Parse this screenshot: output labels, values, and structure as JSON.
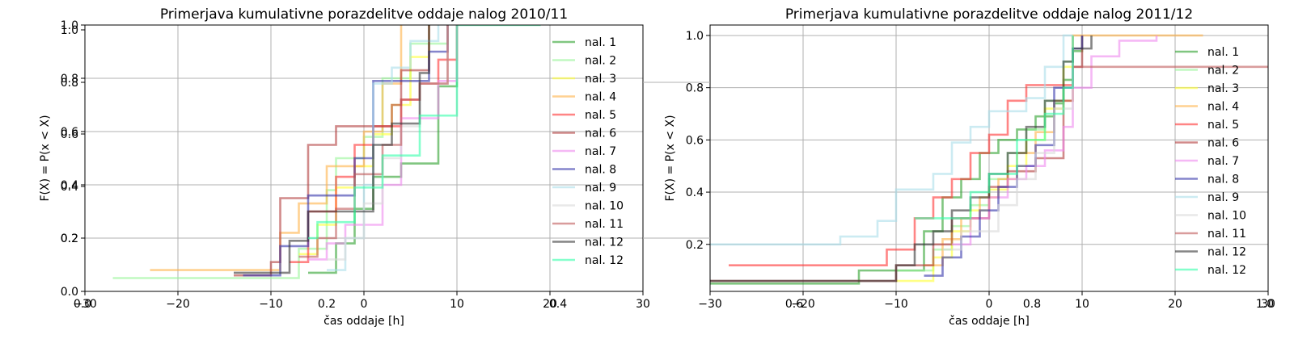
{
  "chart_data": [
    {
      "type": "line",
      "title": "Primerjava kumulativne porazdelitve oddaje nalog 2010/11",
      "xlabel": "čas oddaje [h]",
      "ylabel": "F(X) = P(x < X)",
      "xlim": [
        -30,
        30
      ],
      "ylim": [
        0,
        1
      ],
      "x_ticks": [
        -30,
        -20,
        -10,
        0,
        10,
        20,
        30
      ],
      "x_tick_labels": [
        "−30",
        "−20",
        "−10",
        "0",
        "10",
        "20",
        "30"
      ],
      "y_ticks": [
        0.0,
        0.2,
        0.4,
        0.6,
        0.8,
        1.0
      ],
      "y_tick_labels": [
        "0.0",
        "0.2",
        "0.4",
        "0.6",
        "0.8",
        "1.0"
      ],
      "overlay_y_tick_labels": [
        "0.2",
        "0.4",
        "0.6",
        "0.8",
        "1.0"
      ],
      "overlay_x_tick_labels": [
        "0.0",
        "0.2",
        "0.4"
      ],
      "grid": true,
      "legend_position": "upper right",
      "series": [
        {
          "name": "nal. 1",
          "color": "#2ca02c",
          "x": [
            -6,
            -3,
            -1,
            1,
            4,
            6,
            8,
            10
          ],
          "y": [
            0.07,
            0.18,
            0.31,
            0.43,
            0.48,
            0.48,
            0.77,
            1.0
          ]
        },
        {
          "name": "nal. 2",
          "color": "#98f598",
          "x": [
            -27,
            -7,
            -4,
            -3,
            -2,
            0,
            2,
            5,
            9
          ],
          "y": [
            0.05,
            0.16,
            0.38,
            0.5,
            0.5,
            0.58,
            0.8,
            0.93,
            1.0
          ]
        },
        {
          "name": "nal. 3",
          "color": "#ffff33",
          "x": [
            -7,
            -5,
            -3,
            -1,
            1,
            3,
            5,
            7
          ],
          "y": [
            0.14,
            0.25,
            0.39,
            0.47,
            0.59,
            0.7,
            0.88,
            1.0
          ]
        },
        {
          "name": "nal. 4",
          "color": "#ffb347",
          "x": [
            -23,
            -10,
            -9,
            -7,
            -4,
            -2,
            0,
            2,
            4
          ],
          "y": [
            0.08,
            0.08,
            0.22,
            0.33,
            0.47,
            0.47,
            0.6,
            0.78,
            1.0
          ]
        },
        {
          "name": "nal. 5",
          "color": "#ff3333",
          "x": [
            -8,
            -6,
            -3,
            -1,
            1,
            4,
            6,
            8,
            10
          ],
          "y": [
            0.11,
            0.3,
            0.43,
            0.55,
            0.62,
            0.72,
            0.78,
            0.87,
            1.0
          ]
        },
        {
          "name": "nal. 6",
          "color": "#b23c3c",
          "x": [
            -14,
            -10,
            -9,
            -7,
            -6,
            -4,
            -3,
            3,
            4,
            7
          ],
          "y": [
            0.06,
            0.11,
            0.35,
            0.35,
            0.55,
            0.55,
            0.62,
            0.7,
            0.83,
            1.0
          ]
        },
        {
          "name": "nal. 7",
          "color": "#ee88ee",
          "x": [
            -6,
            -4,
            -2,
            0,
            2,
            4,
            8,
            10
          ],
          "y": [
            0.12,
            0.18,
            0.25,
            0.25,
            0.4,
            0.65,
            0.79,
            1.0
          ]
        },
        {
          "name": "nal. 8",
          "color": "#3333aa",
          "x": [
            -13,
            -9,
            -7,
            -6,
            -3,
            -1,
            1,
            4,
            7,
            9
          ],
          "y": [
            0.06,
            0.17,
            0.17,
            0.36,
            0.36,
            0.5,
            0.79,
            0.79,
            0.9,
            1.0
          ]
        },
        {
          "name": "nal. 9",
          "color": "#aadde9",
          "x": [
            -4,
            -2,
            0,
            1,
            3,
            5,
            8
          ],
          "y": [
            0.08,
            0.2,
            0.4,
            0.78,
            0.84,
            0.94,
            1.0
          ]
        },
        {
          "name": "nal. 10",
          "color": "#d9d9d9",
          "x": [
            -4,
            -2,
            0,
            2,
            4,
            6,
            9
          ],
          "y": [
            0.12,
            0.2,
            0.33,
            0.5,
            0.62,
            0.78,
            1.0
          ]
        },
        {
          "name": "nal. 11",
          "color": "#bf5a5a",
          "x": [
            -7,
            -6,
            -5,
            -3,
            -1,
            2,
            4,
            6,
            9
          ],
          "y": [
            0.13,
            0.13,
            0.2,
            0.31,
            0.44,
            0.55,
            0.72,
            0.78,
            1.0
          ]
        },
        {
          "name": "nal. 12",
          "color": "#333333",
          "x": [
            -14,
            -10,
            -8,
            -6,
            -3,
            1,
            3,
            6,
            7
          ],
          "y": [
            0.07,
            0.07,
            0.19,
            0.3,
            0.3,
            0.55,
            0.63,
            0.82,
            1.0
          ]
        },
        {
          "name": "nal. 12",
          "color": "#33ffaa",
          "x": [
            -6,
            -5,
            -3,
            -1,
            2,
            6,
            9,
            10,
            19
          ],
          "y": [
            0.2,
            0.26,
            0.26,
            0.39,
            0.51,
            0.66,
            0.66,
            1.0,
            1.0
          ]
        }
      ]
    },
    {
      "type": "line",
      "title": "Primerjava kumulativne porazdelitve oddaje nalog 2011/12",
      "xlabel": "čas oddaje [h]",
      "ylabel": "F(X) = P(x < X)",
      "xlim": [
        -30,
        30
      ],
      "ylim": [
        0.02,
        1.04
      ],
      "x_ticks": [
        -30,
        -20,
        -10,
        0,
        10,
        20,
        30
      ],
      "x_tick_labels": [
        "−30",
        "−20",
        "−10",
        "0",
        "10",
        "20",
        "30"
      ],
      "y_ticks": [
        0.2,
        0.4,
        0.6,
        0.8,
        1.0
      ],
      "y_tick_labels": [
        "0.2",
        "0.4",
        "0.6",
        "0.8",
        "1.0"
      ],
      "overlay_x_tick_labels": [
        "0.6",
        "0.8",
        "1.0"
      ],
      "grid": true,
      "legend_position": "right",
      "series": [
        {
          "name": "nal. 1",
          "color": "#2ca02c",
          "x": [
            -30,
            -14,
            -7,
            -5,
            -3,
            -1,
            1,
            3,
            5,
            7,
            8,
            9,
            10
          ],
          "y": [
            0.05,
            0.1,
            0.25,
            0.38,
            0.45,
            0.55,
            0.6,
            0.64,
            0.69,
            0.74,
            0.83,
            0.94,
            1.0
          ]
        },
        {
          "name": "nal. 2",
          "color": "#98f598",
          "x": [
            -10,
            -6,
            -4,
            -2,
            0,
            2,
            4,
            6,
            8,
            9
          ],
          "y": [
            0.1,
            0.18,
            0.27,
            0.35,
            0.45,
            0.55,
            0.64,
            0.75,
            0.9,
            1.0
          ]
        },
        {
          "name": "nal. 3",
          "color": "#ffff33",
          "x": [
            -10,
            -6,
            -4,
            -2,
            0,
            2,
            4,
            6,
            8,
            9
          ],
          "y": [
            0.06,
            0.15,
            0.25,
            0.33,
            0.41,
            0.5,
            0.6,
            0.72,
            0.88,
            1.0
          ]
        },
        {
          "name": "nal. 4",
          "color": "#ffb347",
          "x": [
            -7,
            -5,
            -3,
            -1,
            1,
            3,
            5,
            7,
            9,
            23
          ],
          "y": [
            0.12,
            0.22,
            0.3,
            0.38,
            0.45,
            0.55,
            0.63,
            0.75,
            1.0,
            1.0
          ]
        },
        {
          "name": "nal. 5",
          "color": "#ff3333",
          "x": [
            -28,
            -11,
            -8,
            -6,
            -4,
            -2,
            0,
            2,
            4,
            6,
            9
          ],
          "y": [
            0.12,
            0.18,
            0.3,
            0.38,
            0.45,
            0.55,
            0.62,
            0.75,
            0.81,
            0.81,
            1.0
          ]
        },
        {
          "name": "nal. 6",
          "color": "#b23c3c",
          "x": [
            -30,
            -28,
            -10,
            -6,
            -4,
            -2,
            0,
            2,
            5,
            8,
            9,
            10
          ],
          "y": [
            0.06,
            0.06,
            0.12,
            0.2,
            0.3,
            0.3,
            0.42,
            0.48,
            0.53,
            0.75,
            0.88,
            1.0
          ]
        },
        {
          "name": "nal. 7",
          "color": "#ee88ee",
          "x": [
            -4,
            -2,
            0,
            2,
            4,
            6,
            8,
            9,
            11,
            14,
            18
          ],
          "y": [
            0.2,
            0.3,
            0.38,
            0.45,
            0.5,
            0.56,
            0.65,
            0.8,
            0.92,
            0.98,
            1.0
          ]
        },
        {
          "name": "nal. 8",
          "color": "#3333aa",
          "x": [
            -7,
            -5,
            -3,
            -1,
            1,
            3,
            5,
            7,
            9,
            10
          ],
          "y": [
            0.08,
            0.15,
            0.23,
            0.33,
            0.42,
            0.5,
            0.58,
            0.8,
            0.95,
            1.0
          ]
        },
        {
          "name": "nal. 9",
          "color": "#aadde9",
          "x": [
            -30,
            -16,
            -12,
            -10,
            -8,
            -6,
            -4,
            -2,
            0,
            4,
            6,
            8,
            9
          ],
          "y": [
            0.2,
            0.23,
            0.29,
            0.41,
            0.41,
            0.47,
            0.59,
            0.65,
            0.71,
            0.76,
            0.88,
            1.0,
            1.0
          ]
        },
        {
          "name": "nal. 10",
          "color": "#d9d9d9",
          "x": [
            -5,
            -3,
            -1,
            1,
            3,
            5,
            7,
            9
          ],
          "y": [
            0.18,
            0.25,
            0.25,
            0.35,
            0.45,
            0.55,
            0.72,
            1.0
          ]
        },
        {
          "name": "nal. 11",
          "color": "#bf5a5a",
          "x": [
            9,
            11,
            30
          ],
          "y": [
            0.88,
            0.88,
            0.88
          ]
        },
        {
          "name": "nal. 12",
          "color": "#333333",
          "x": [
            -30,
            -10,
            -8,
            -6,
            -4,
            -2,
            0,
            2,
            4,
            6,
            8,
            9,
            11
          ],
          "y": [
            0.06,
            0.12,
            0.2,
            0.25,
            0.33,
            0.38,
            0.47,
            0.55,
            0.65,
            0.75,
            0.9,
            0.95,
            1.0
          ]
        },
        {
          "name": "nal. 12",
          "color": "#33ffaa",
          "x": [
            -8,
            -6,
            -2,
            0,
            3,
            6,
            8,
            9
          ],
          "y": [
            0.3,
            0.3,
            0.4,
            0.47,
            0.6,
            0.7,
            0.8,
            1.0
          ]
        }
      ]
    }
  ]
}
